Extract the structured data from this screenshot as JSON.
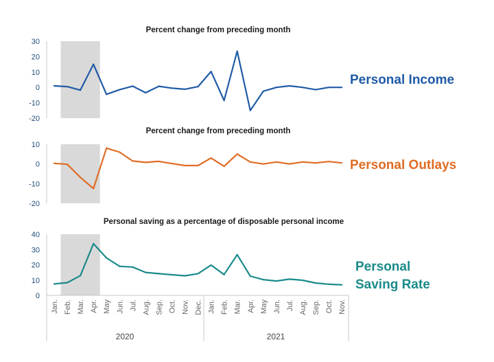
{
  "months": [
    "Jan.",
    "Feb.",
    "Mar.",
    "Apr.",
    "May",
    "Jun.",
    "Jul.",
    "Aug.",
    "Sep.",
    "Oct.",
    "Nov.",
    "Dec.",
    "Jan.",
    "Feb.",
    "Mar.",
    "Apr.",
    "May",
    "Jun.",
    "Jul.",
    "Aug.",
    "Sep.",
    "Oct.",
    "Nov."
  ],
  "years": [
    "2020",
    "2021"
  ],
  "chart_data": [
    {
      "type": "line",
      "title": "Percent change from preceding month",
      "label": "Personal Income",
      "color": "#1f5aa6",
      "ylim": [
        -20,
        30
      ],
      "yticks": [
        30,
        20,
        10,
        0,
        -10,
        -20
      ],
      "shaded_months": [
        "Feb.",
        "Apr."
      ],
      "values": [
        1,
        0.5,
        -1.8,
        15,
        -4.5,
        -1.5,
        0.8,
        -3.5,
        0.7,
        -0.5,
        -1.2,
        0.5,
        10.3,
        -8.5,
        23.5,
        -15,
        -2.5,
        0,
        1,
        0,
        -1.5,
        0,
        0
      ]
    },
    {
      "type": "line",
      "title": "Percent change from preceding month",
      "label": "Personal Outlays",
      "color": "#e06c24",
      "ylim": [
        -20,
        10
      ],
      "yticks": [
        10,
        0,
        -10,
        -20
      ],
      "shaded_months": [
        "Feb.",
        "Apr."
      ],
      "values": [
        0.3,
        -0.2,
        -6.8,
        -12.5,
        8,
        6,
        1.5,
        0.8,
        1.3,
        0.2,
        -0.8,
        -0.8,
        3,
        -1.2,
        5,
        1,
        0,
        1,
        0,
        1,
        0.5,
        1.2,
        0.5
      ]
    },
    {
      "type": "line",
      "title": "Personal saving as a percentage of disposable personal income",
      "label_lines": [
        "Personal",
        "Saving Rate"
      ],
      "color": "#1a8a8a",
      "ylim": [
        0,
        40
      ],
      "yticks": [
        40,
        30,
        20,
        10,
        0
      ],
      "shaded_months": [
        "Feb.",
        "Apr."
      ],
      "values": [
        7.5,
        8.3,
        12.9,
        33.8,
        24.5,
        19,
        18.5,
        15,
        14.2,
        13.5,
        12.8,
        14.2,
        19.8,
        13.6,
        26.6,
        12.6,
        10.3,
        9.4,
        10.6,
        9.9,
        8.1,
        7.3,
        6.9
      ]
    }
  ]
}
